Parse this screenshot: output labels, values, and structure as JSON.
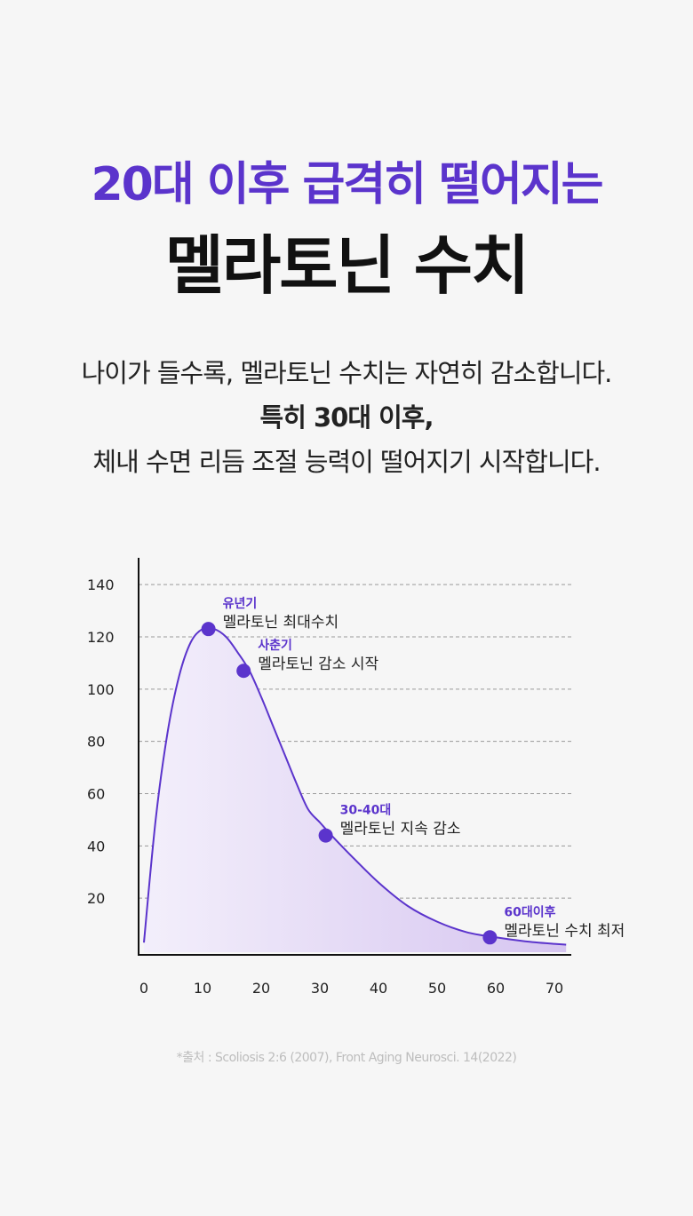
{
  "headline": {
    "subtitle": "20대 이후 급격히 떨어지는",
    "title": "멜라토닌 수치"
  },
  "body": {
    "line1": "나이가 들수록, 멜라토닌 수치는 자연히 감소합니다.",
    "line2": "특히 30대 이후,",
    "line3": "체내 수면 리듬 조절 능력이 떨어지기 시작합니다."
  },
  "colors": {
    "accent": "#5b34cc",
    "title": "#111111",
    "fill_light": "#f3effb",
    "fill_dark": "#d6c5f0",
    "grid": "#999999"
  },
  "chart_data": {
    "type": "area",
    "x": [
      0,
      2,
      4,
      6,
      8,
      10,
      12,
      14,
      16,
      18,
      20,
      22,
      24,
      26,
      28,
      30,
      32,
      35,
      40,
      45,
      50,
      55,
      60,
      65,
      70,
      72
    ],
    "y": [
      3,
      50,
      83,
      105,
      118,
      123,
      123,
      120,
      114,
      107,
      97,
      86,
      75,
      64,
      54,
      49,
      44,
      37,
      26,
      17,
      11,
      7,
      5,
      3.5,
      2.5,
      2.2
    ],
    "xticks": [
      0,
      10,
      20,
      30,
      40,
      50,
      60,
      70
    ],
    "yticks": [
      20,
      40,
      60,
      80,
      100,
      120,
      140
    ],
    "xlim": [
      0,
      72
    ],
    "ylim": [
      0,
      150
    ],
    "grid": "horizontal dashed",
    "points": [
      {
        "x": 11,
        "y": 123,
        "label": "유년기",
        "text": "멜라토닌 최대수치"
      },
      {
        "x": 17,
        "y": 107,
        "label": "사춘기",
        "text": "멜라토닌 감소 시작"
      },
      {
        "x": 31,
        "y": 44,
        "label": "30-40대",
        "text": "멜라토닌 지속 감소"
      },
      {
        "x": 59,
        "y": 5,
        "label": "60대이후",
        "text": "멜라토닌 수치 최저"
      }
    ]
  },
  "source": "*출처 : Scoliosis 2:6 (2007), Front Aging Neurosci. 14(2022)"
}
